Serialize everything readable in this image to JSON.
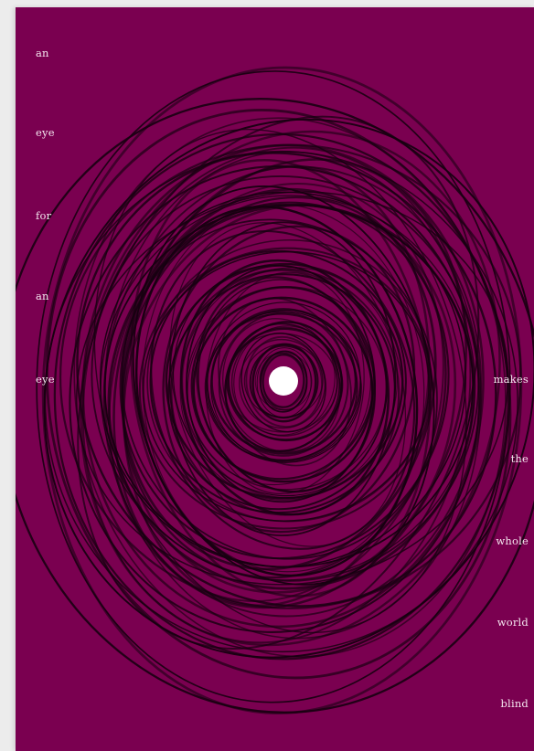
{
  "poster": {
    "background_color": "#7a0050",
    "scribble_color": "#160010",
    "pupil_color": "#ffffff",
    "left_words": [
      "an",
      "eye",
      "for",
      "an",
      "eye"
    ],
    "right_words": [
      "makes",
      "the",
      "whole",
      "world",
      "blind"
    ]
  }
}
